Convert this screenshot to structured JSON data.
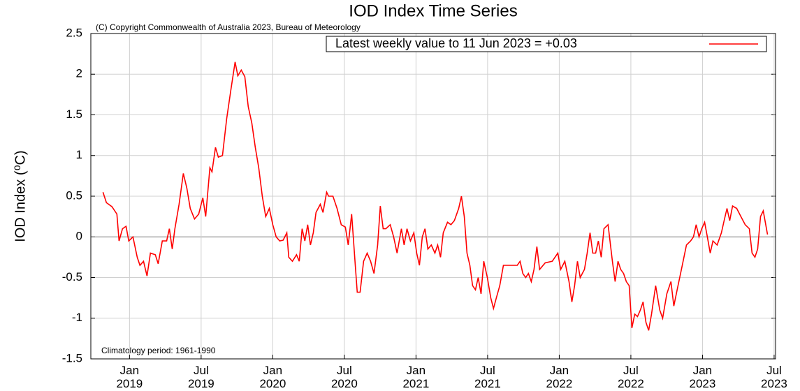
{
  "chart_data": {
    "type": "line",
    "title": "IOD Index Time Series",
    "annotations": [
      "(C) Copyright Commonwealth of Australia 2023, Bureau of Meteorology",
      "Climatology period: 1961-1990"
    ],
    "y_label": "IOD Index (⁰C)",
    "xlim": [
      2018.73,
      2023.51
    ],
    "ylim": [
      -1.5,
      2.5
    ],
    "xticks": [
      {
        "value": 2019,
        "label": "Jan 2019"
      },
      {
        "value": 2019.5,
        "label": "Jul 2019"
      },
      {
        "value": 2020,
        "label": "Jan 2020"
      },
      {
        "value": 2020.5,
        "label": "Jul 2020"
      },
      {
        "value": 2021,
        "label": "Jan 2021"
      },
      {
        "value": 2021.5,
        "label": "Jul 2021"
      },
      {
        "value": 2022,
        "label": "Jan 2022"
      },
      {
        "value": 2022.5,
        "label": "Jul 2022"
      },
      {
        "value": 2023,
        "label": "Jan 2023"
      },
      {
        "value": 2023.5,
        "label": "Jul 2023"
      }
    ],
    "yticks": [
      2.5,
      2,
      1.5,
      1,
      0.5,
      0,
      -0.5,
      -1,
      -1.5
    ],
    "grid": true,
    "legend": "top-right",
    "x": [
      2018.815,
      2018.839,
      2018.878,
      2018.912,
      2018.927,
      2018.951,
      2018.976,
      2018.995,
      2019.024,
      2019.054,
      2019.073,
      2019.098,
      2019.122,
      2019.146,
      2019.18,
      2019.2,
      2019.229,
      2019.259,
      2019.278,
      2019.298,
      2019.317,
      2019.346,
      2019.376,
      2019.4,
      2019.424,
      2019.454,
      2019.483,
      2019.512,
      2019.532,
      2019.561,
      2019.576,
      2019.6,
      2019.62,
      2019.649,
      2019.678,
      2019.707,
      2019.737,
      2019.756,
      2019.78,
      2019.805,
      2019.829,
      2019.854,
      2019.878,
      2019.902,
      2019.927,
      2019.951,
      2019.976,
      2020.0,
      2020.024,
      2020.049,
      2020.073,
      2020.098,
      2020.112,
      2020.137,
      2020.166,
      2020.185,
      2020.205,
      2020.224,
      2020.244,
      2020.263,
      2020.283,
      2020.302,
      2020.332,
      2020.351,
      2020.376,
      2020.39,
      2020.42,
      2020.449,
      2020.478,
      2020.507,
      2020.527,
      2020.551,
      2020.576,
      2020.59,
      2020.61,
      2020.634,
      2020.659,
      2020.683,
      2020.707,
      2020.732,
      2020.751,
      2020.771,
      2020.79,
      2020.82,
      2020.844,
      2020.868,
      2020.898,
      2020.917,
      2020.937,
      2020.961,
      2020.985,
      2021.005,
      2021.024,
      2021.044,
      2021.063,
      2021.083,
      2021.107,
      2021.132,
      2021.151,
      2021.171,
      2021.19,
      2021.22,
      2021.244,
      2021.268,
      2021.298,
      2021.317,
      2021.337,
      2021.356,
      2021.376,
      2021.395,
      2021.415,
      2021.434,
      2021.454,
      2021.473,
      2021.498,
      2021.522,
      2021.541,
      2021.561,
      2021.585,
      2021.61,
      2021.659,
      2021.707,
      2021.727,
      2021.746,
      2021.766,
      2021.785,
      2021.805,
      2021.824,
      2021.844,
      2021.863,
      2021.902,
      2021.951,
      2021.99,
      2022.01,
      2022.039,
      2022.068,
      2022.088,
      2022.107,
      2022.127,
      2022.146,
      2022.176,
      2022.195,
      2022.215,
      2022.234,
      2022.254,
      2022.273,
      2022.293,
      2022.312,
      2022.341,
      2022.371,
      2022.39,
      2022.41,
      2022.429,
      2022.449,
      2022.468,
      2022.488,
      2022.507,
      2022.527,
      2022.546,
      2022.566,
      2022.585,
      2022.605,
      2022.624,
      2022.644,
      2022.673,
      2022.702,
      2022.722,
      2022.751,
      2022.78,
      2022.8,
      2022.829,
      2022.859,
      2022.888,
      2022.917,
      2022.937,
      2022.956,
      2022.976,
      2022.995,
      2023.015,
      2023.034,
      2023.054,
      2023.073,
      2023.102,
      2023.132,
      2023.151,
      2023.171,
      2023.19,
      2023.21,
      2023.239,
      2023.268,
      2023.298,
      2023.327,
      2023.346,
      2023.366,
      2023.385,
      2023.405,
      2023.424,
      2023.454
    ],
    "series": [
      {
        "name": "Latest weekly value to 11 Jun 2023 = +0.03",
        "color": "#ff0000",
        "values": [
          0.55,
          0.42,
          0.37,
          0.28,
          -0.05,
          0.1,
          0.13,
          -0.05,
          0.0,
          -0.25,
          -0.35,
          -0.3,
          -0.48,
          -0.2,
          -0.22,
          -0.33,
          -0.05,
          -0.05,
          0.1,
          -0.15,
          0.1,
          0.4,
          0.78,
          0.6,
          0.35,
          0.22,
          0.28,
          0.48,
          0.25,
          0.85,
          0.8,
          1.1,
          0.98,
          1.0,
          1.45,
          1.8,
          2.15,
          1.98,
          2.05,
          1.97,
          1.6,
          1.4,
          1.1,
          0.85,
          0.5,
          0.25,
          0.35,
          0.15,
          0.0,
          -0.05,
          -0.04,
          0.05,
          -0.25,
          -0.3,
          -0.22,
          -0.3,
          0.1,
          -0.05,
          0.15,
          -0.1,
          0.05,
          0.3,
          0.4,
          0.3,
          0.55,
          0.5,
          0.5,
          0.35,
          0.15,
          0.12,
          -0.1,
          0.28,
          -0.35,
          -0.68,
          -0.68,
          -0.3,
          -0.2,
          -0.3,
          -0.45,
          -0.1,
          0.38,
          0.1,
          0.1,
          0.15,
          0.0,
          -0.2,
          0.1,
          -0.1,
          0.1,
          -0.05,
          0.05,
          -0.2,
          -0.35,
          0.0,
          0.1,
          -0.15,
          -0.1,
          -0.2,
          -0.1,
          -0.25,
          0.05,
          0.18,
          0.15,
          0.2,
          0.35,
          0.5,
          0.25,
          -0.2,
          -0.35,
          -0.6,
          -0.65,
          -0.5,
          -0.7,
          -0.3,
          -0.5,
          -0.75,
          -0.88,
          -0.75,
          -0.6,
          -0.35,
          -0.35,
          -0.35,
          -0.3,
          -0.45,
          -0.5,
          -0.45,
          -0.55,
          -0.4,
          -0.12,
          -0.4,
          -0.32,
          -0.3,
          -0.2,
          -0.4,
          -0.3,
          -0.55,
          -0.8,
          -0.6,
          -0.3,
          -0.5,
          -0.4,
          -0.2,
          0.05,
          -0.2,
          -0.2,
          -0.05,
          -0.25,
          0.1,
          0.15,
          -0.3,
          -0.55,
          -0.3,
          -0.4,
          -0.45,
          -0.55,
          -0.6,
          -1.12,
          -0.95,
          -0.98,
          -0.9,
          -0.8,
          -1.05,
          -1.15,
          -0.95,
          -0.6,
          -0.9,
          -1.0,
          -0.7,
          -0.55,
          -0.85,
          -0.6,
          -0.35,
          -0.1,
          -0.05,
          0.0,
          0.15,
          0.0,
          0.1,
          0.18,
          0.0,
          -0.2,
          -0.05,
          -0.1,
          0.05,
          0.2,
          0.35,
          0.2,
          0.38,
          0.35,
          0.25,
          0.15,
          0.1,
          -0.2,
          -0.25,
          -0.15,
          0.25,
          0.32,
          0.03
        ]
      }
    ]
  }
}
